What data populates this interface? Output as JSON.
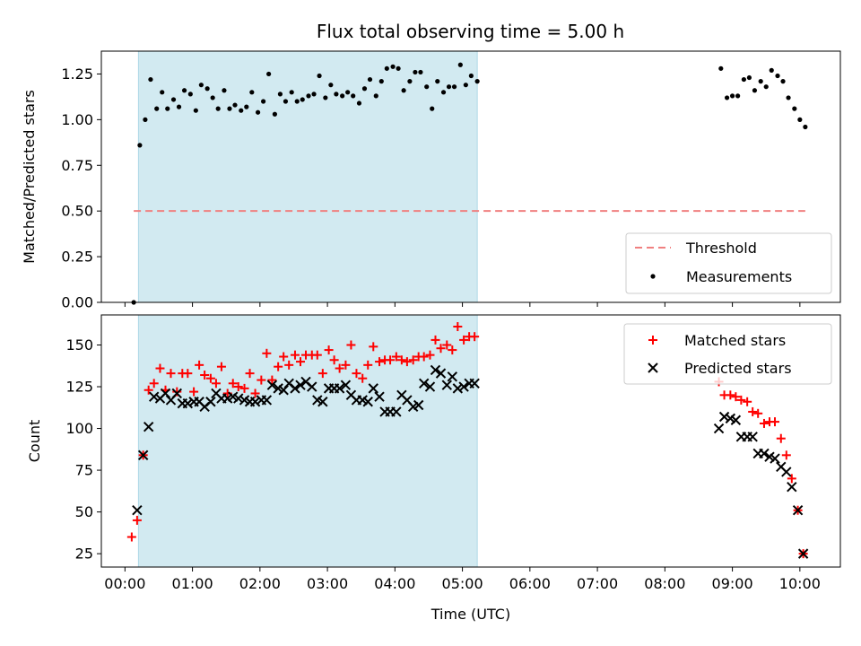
{
  "chart_data": [
    {
      "type": "scatter",
      "title": "Flux total observing time = 5.00 h",
      "xlabel": "",
      "ylabel": "Matched/Predicted stars",
      "xlim_hours": [
        -0.35,
        10.6
      ],
      "ylim": [
        0.0,
        1.375
      ],
      "yticks": [
        0.0,
        0.25,
        0.5,
        0.75,
        1.0,
        1.25
      ],
      "ytick_labels": [
        "0.00",
        "0.25",
        "0.50",
        "0.75",
        "1.00",
        "1.25"
      ],
      "shaded_span_hours": [
        0.2,
        5.22
      ],
      "shaded_color": "#add8e6",
      "grid": false,
      "legend_position": "lower-right",
      "threshold": {
        "name": "Threshold",
        "x_range_hours": [
          0.13,
          10.08
        ],
        "y": 0.5,
        "color": "#f08080",
        "style": "dashed"
      },
      "series": [
        {
          "name": "Measurements",
          "marker": "dot",
          "color": "#000000",
          "x_hours": [
            0.13,
            0.22,
            0.3,
            0.38,
            0.47,
            0.55,
            0.63,
            0.72,
            0.8,
            0.88,
            0.97,
            1.05,
            1.13,
            1.22,
            1.3,
            1.38,
            1.47,
            1.55,
            1.63,
            1.72,
            1.8,
            1.88,
            1.97,
            2.05,
            2.13,
            2.22,
            2.3,
            2.38,
            2.47,
            2.55,
            2.63,
            2.72,
            2.8,
            2.88,
            2.97,
            3.05,
            3.13,
            3.22,
            3.3,
            3.38,
            3.47,
            3.55,
            3.63,
            3.72,
            3.8,
            3.88,
            3.97,
            4.05,
            4.13,
            4.22,
            4.3,
            4.38,
            4.47,
            4.55,
            4.63,
            4.72,
            4.8,
            4.88,
            4.97,
            5.05,
            5.13,
            5.22,
            8.83,
            8.92,
            9.0,
            9.08,
            9.17,
            9.25,
            9.33,
            9.42,
            9.5,
            9.58,
            9.67,
            9.75,
            9.83,
            9.92,
            10.0,
            10.08
          ],
          "values": [
            0.0,
            0.86,
            1.0,
            1.22,
            1.06,
            1.15,
            1.06,
            1.11,
            1.07,
            1.16,
            1.14,
            1.05,
            1.19,
            1.17,
            1.12,
            1.06,
            1.16,
            1.06,
            1.08,
            1.05,
            1.07,
            1.15,
            1.04,
            1.1,
            1.25,
            1.03,
            1.14,
            1.1,
            1.15,
            1.1,
            1.11,
            1.13,
            1.14,
            1.24,
            1.12,
            1.19,
            1.14,
            1.13,
            1.15,
            1.13,
            1.09,
            1.17,
            1.22,
            1.13,
            1.21,
            1.28,
            1.29,
            1.28,
            1.16,
            1.21,
            1.26,
            1.26,
            1.18,
            1.06,
            1.21,
            1.15,
            1.18,
            1.18,
            1.3,
            1.19,
            1.24,
            1.21,
            1.28,
            1.12,
            1.13,
            1.13,
            1.22,
            1.23,
            1.16,
            1.21,
            1.18,
            1.27,
            1.24,
            1.21,
            1.12,
            1.06,
            1.0,
            0.96
          ]
        }
      ]
    },
    {
      "type": "scatter",
      "title": "",
      "xlabel": "Time (UTC)",
      "ylabel": "Count",
      "xlim_hours": [
        -0.35,
        10.6
      ],
      "ylim": [
        17,
        168
      ],
      "yticks": [
        25,
        50,
        75,
        100,
        125,
        150
      ],
      "ytick_labels": [
        "25",
        "50",
        "75",
        "100",
        "125",
        "150"
      ],
      "xticks_hours": [
        0,
        1,
        2,
        3,
        4,
        5,
        6,
        7,
        8,
        9,
        10
      ],
      "xtick_labels": [
        "00:00",
        "01:00",
        "02:00",
        "03:00",
        "04:00",
        "05:00",
        "06:00",
        "07:00",
        "08:00",
        "09:00",
        "10:00"
      ],
      "shaded_span_hours": [
        0.2,
        5.22
      ],
      "shaded_color": "#add8e6",
      "grid": false,
      "legend_position": "upper-right",
      "series": [
        {
          "name": "Matched stars",
          "marker": "plus",
          "color": "#ff0000",
          "x_hours": [
            0.1,
            0.18,
            0.27,
            0.35,
            0.43,
            0.52,
            0.6,
            0.68,
            0.77,
            0.85,
            0.93,
            1.02,
            1.1,
            1.18,
            1.27,
            1.35,
            1.43,
            1.52,
            1.6,
            1.68,
            1.77,
            1.85,
            1.93,
            2.02,
            2.1,
            2.18,
            2.27,
            2.35,
            2.43,
            2.52,
            2.6,
            2.68,
            2.77,
            2.85,
            2.93,
            3.02,
            3.1,
            3.18,
            3.27,
            3.35,
            3.43,
            3.52,
            3.6,
            3.68,
            3.77,
            3.85,
            3.93,
            4.02,
            4.1,
            4.18,
            4.27,
            4.35,
            4.43,
            4.52,
            4.6,
            4.68,
            4.77,
            4.85,
            4.93,
            5.02,
            5.1,
            5.18,
            8.8,
            8.88,
            8.97,
            9.05,
            9.13,
            9.22,
            9.3,
            9.38,
            9.47,
            9.55,
            9.63,
            9.72,
            9.8,
            9.88,
            9.97,
            10.05
          ],
          "values": [
            35,
            45,
            84,
            123,
            127,
            136,
            123,
            133,
            122,
            133,
            133,
            122,
            138,
            132,
            130,
            127,
            137,
            121,
            127,
            125,
            124,
            133,
            121,
            129,
            145,
            129,
            137,
            143,
            138,
            144,
            140,
            144,
            144,
            144,
            133,
            147,
            141,
            136,
            138,
            150,
            133,
            130,
            138,
            149,
            140,
            141,
            141,
            143,
            141,
            140,
            141,
            143,
            143,
            144,
            153,
            148,
            150,
            147,
            161,
            153,
            155,
            155,
            128,
            120,
            120,
            119,
            117,
            116,
            110,
            109,
            103,
            104,
            104,
            94,
            84,
            70,
            51,
            25
          ]
        },
        {
          "name": "Predicted stars",
          "marker": "x",
          "color": "#000000",
          "x_hours": [
            0.18,
            0.27,
            0.35,
            0.43,
            0.52,
            0.6,
            0.68,
            0.77,
            0.85,
            0.93,
            1.02,
            1.1,
            1.18,
            1.27,
            1.35,
            1.43,
            1.52,
            1.6,
            1.68,
            1.77,
            1.85,
            1.93,
            2.02,
            2.1,
            2.18,
            2.27,
            2.35,
            2.43,
            2.52,
            2.6,
            2.68,
            2.77,
            2.85,
            2.93,
            3.02,
            3.1,
            3.18,
            3.27,
            3.35,
            3.43,
            3.52,
            3.6,
            3.68,
            3.77,
            3.85,
            3.93,
            4.02,
            4.1,
            4.18,
            4.27,
            4.35,
            4.43,
            4.52,
            4.6,
            4.68,
            4.77,
            4.85,
            4.93,
            5.02,
            5.1,
            5.18,
            8.8,
            8.88,
            8.97,
            9.05,
            9.13,
            9.22,
            9.3,
            9.38,
            9.47,
            9.55,
            9.63,
            9.72,
            9.8,
            9.88,
            9.97,
            10.05
          ],
          "values": [
            51,
            84,
            101,
            119,
            118,
            121,
            117,
            121,
            115,
            115,
            116,
            116,
            113,
            116,
            121,
            118,
            118,
            119,
            118,
            117,
            116,
            116,
            117,
            117,
            126,
            124,
            123,
            127,
            124,
            126,
            128,
            125,
            117,
            116,
            124,
            124,
            124,
            126,
            120,
            117,
            117,
            116,
            124,
            119,
            110,
            110,
            110,
            120,
            117,
            113,
            114,
            127,
            125,
            135,
            133,
            126,
            131,
            124,
            125,
            127,
            127,
            100,
            107,
            106,
            105,
            95,
            95,
            95,
            85,
            85,
            83,
            82,
            77,
            74,
            65,
            51,
            25
          ]
        }
      ]
    }
  ]
}
